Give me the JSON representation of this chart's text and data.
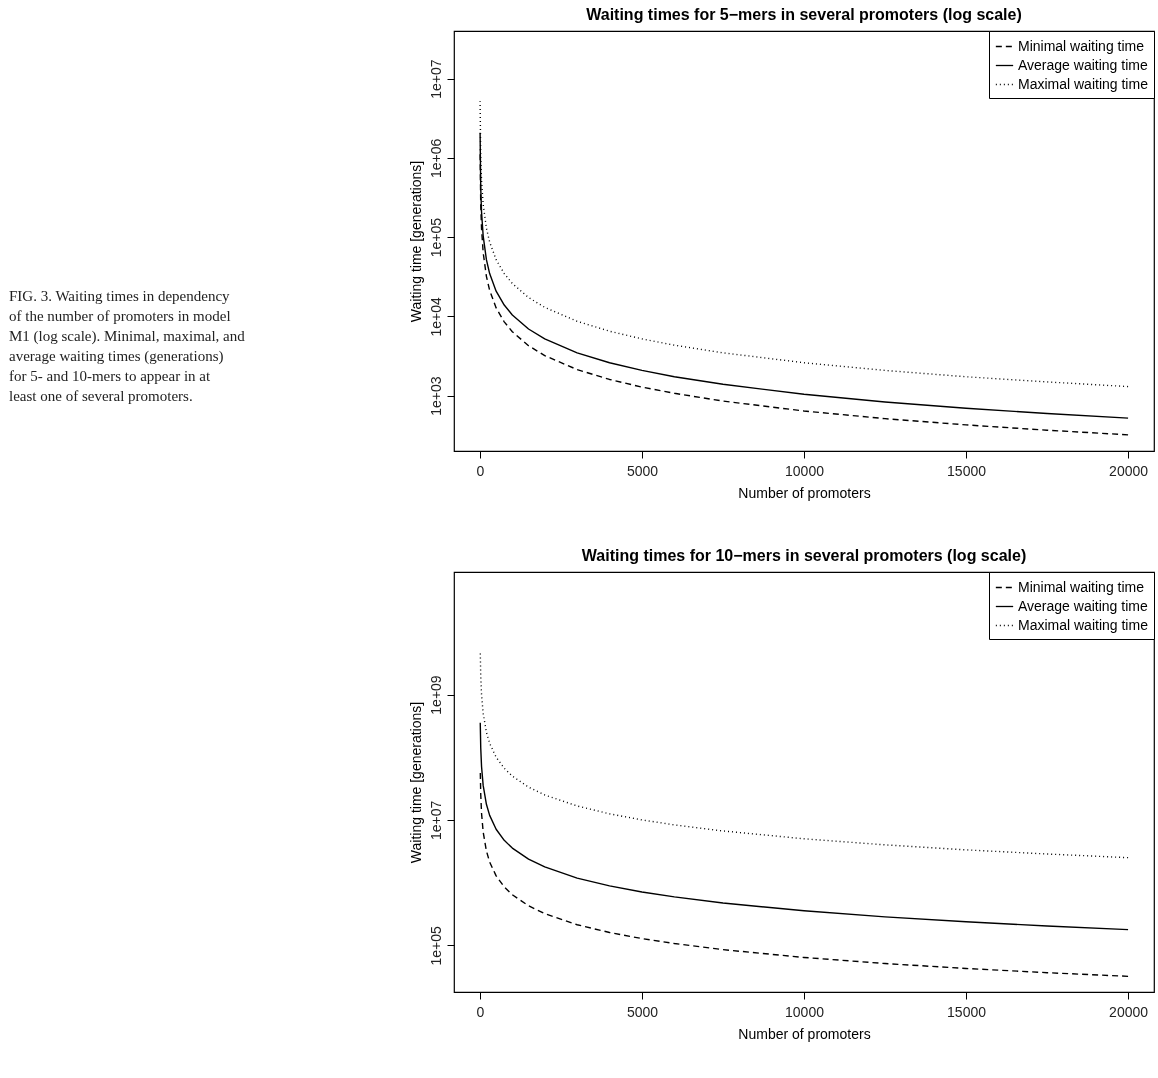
{
  "chart_data": [
    {
      "type": "line",
      "title": "Waiting times for 5−mers in several promoters (log scale)",
      "xlabel": "Number of promoters",
      "ylabel": "Waiting time [generations]",
      "annotations": [
        "FIG. 3.  Waiting times in dependency of the number of promoters in model M1 (log scale). Minimal, maximal, and average waiting times (generations) for 5- and 10-mers to appear in at least one of several promoters."
      ],
      "x": [
        5,
        25,
        50,
        100,
        200,
        300,
        500,
        750,
        1000,
        1500,
        2000,
        3000,
        4000,
        5000,
        6000,
        7500,
        10000,
        12500,
        15000,
        17500,
        20000
      ],
      "series": [
        {
          "name": "Minimal waiting time",
          "color": "#000000",
          "line_style": "dashed",
          "values": [
            1280000,
            256000,
            128000,
            64000,
            32000,
            21300,
            12800,
            8530,
            6400,
            4270,
            3200,
            2130,
            1600,
            1280,
            1070,
            853,
            640,
            512,
            427,
            366,
            320
          ]
        },
        {
          "name": "Average waiting time",
          "color": "#000000",
          "line_style": "solid",
          "values": [
            2080000,
            416000,
            208000,
            104000,
            52000,
            34700,
            20800,
            13900,
            10400,
            6930,
            5200,
            3470,
            2600,
            2080,
            1730,
            1390,
            1040,
            832,
            693,
            594,
            520
          ]
        },
        {
          "name": "Maximal waiting time",
          "color": "#000000",
          "line_style": "dotted",
          "values": [
            5200000,
            1040000,
            520000,
            260000,
            130000,
            86700,
            52000,
            34700,
            26000,
            17300,
            13000,
            8670,
            6500,
            5200,
            4330,
            3470,
            2600,
            2080,
            1730,
            1490,
            1300
          ]
        }
      ],
      "log": true,
      "grid": false,
      "legend": "top right",
      "xlim": [
        -800,
        20800
      ],
      "xticks": [
        0,
        5000,
        10000,
        15000,
        20000
      ],
      "ylim": [
        200,
        40000000
      ],
      "yticks": [
        {
          "value": 1000,
          "label": "1e+03"
        },
        {
          "value": 10000,
          "label": "1e+04"
        },
        {
          "value": 100000,
          "label": "1e+05"
        },
        {
          "value": 1000000,
          "label": "1e+06"
        },
        {
          "value": 10000000,
          "label": "1e+07"
        }
      ]
    },
    {
      "type": "line",
      "title": "Waiting times for 10−mers in several promoters (log scale)",
      "xlabel": "Number of promoters",
      "ylabel": "Waiting time [generations]",
      "x": [
        10,
        25,
        50,
        100,
        200,
        300,
        500,
        750,
        1000,
        1500,
        2000,
        3000,
        4000,
        5000,
        6000,
        7500,
        10000,
        12500,
        15000,
        17500,
        20000
      ],
      "series": [
        {
          "name": "Minimal waiting time",
          "color": "#000000",
          "line_style": "dashed",
          "values": [
            64000000,
            25600000,
            12800000,
            6400000,
            3200000,
            2130000,
            1280000,
            853000,
            640000,
            427000,
            320000,
            213000,
            160000,
            128000,
            107000,
            85300,
            64000,
            51200,
            42700,
            36600,
            32000
          ]
        },
        {
          "name": "Average waiting time",
          "color": "#000000",
          "line_style": "solid",
          "values": [
            355000000,
            142000000,
            71000000,
            35500000,
            17750000,
            11800000,
            7100000,
            4730000,
            3550000,
            2370000,
            1780000,
            1180000,
            888000,
            710000,
            592000,
            473000,
            355000,
            284000,
            237000,
            203000,
            178000
          ]
        },
        {
          "name": "Maximal waiting time",
          "color": "#000000",
          "line_style": "dotted",
          "values": [
            5000000000,
            2000000000,
            1000000000,
            500000000,
            250000000,
            167000000,
            100000000,
            66700000,
            50000000,
            33300000,
            25000000,
            16700000,
            12500000,
            10000000,
            8330000,
            6670000,
            5000000,
            4000000,
            3330000,
            2860000,
            2500000
          ]
        }
      ],
      "log": true,
      "grid": false,
      "legend": "top right",
      "xlim": [
        -800,
        20800
      ],
      "xticks": [
        0,
        5000,
        10000,
        15000,
        20000
      ],
      "ylim": [
        18000,
        90000000000
      ],
      "yticks": [
        {
          "value": 100000,
          "label": "1e+05"
        },
        {
          "value": 10000000,
          "label": "1e+07"
        },
        {
          "value": 1000000000,
          "label": "1e+09"
        }
      ]
    }
  ]
}
